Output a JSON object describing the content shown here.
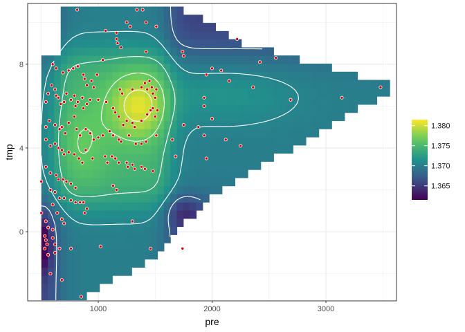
{
  "chart_data": {
    "type": "heatmap",
    "title": "",
    "xlabel": "pre",
    "ylabel": "tmp",
    "xlim": [
      380,
      3620
    ],
    "ylim": [
      -3.3,
      10.9
    ],
    "x_ticks": [
      {
        "value": 1000,
        "label": "1000"
      },
      {
        "value": 2000,
        "label": "2000"
      },
      {
        "value": 3000,
        "label": "3000"
      }
    ],
    "y_ticks": [
      {
        "value": 0,
        "label": "0"
      },
      {
        "value": 4,
        "label": "4"
      },
      {
        "value": 8,
        "label": "8"
      }
    ],
    "grid": true,
    "fill_scale": {
      "name": "viridis",
      "range": [
        1.3615,
        1.3815
      ],
      "colors": [
        "#440154",
        "#3b528b",
        "#21918c",
        "#5ec962",
        "#fde725"
      ]
    },
    "legend": {
      "position": "right",
      "entries": [
        {
          "value": 1.365,
          "label": "1.365"
        },
        {
          "value": 1.37,
          "label": "1.370"
        },
        {
          "value": 1.375,
          "label": "1.375"
        },
        {
          "value": 1.38,
          "label": "1.380"
        }
      ]
    },
    "colors": {
      "panel_border": "#333333",
      "grid_major": "#ebebeb",
      "contour": "#ffffff",
      "point_fill": "#dd0000",
      "point_stroke": "#ffffff"
    },
    "points": [
      [
        815,
        10.6
      ],
      [
        1065,
        9.6
      ],
      [
        1160,
        9.5
      ],
      [
        1160,
        9.2
      ],
      [
        1170,
        9.0
      ],
      [
        1200,
        8.8
      ],
      [
        1250,
        10.0
      ],
      [
        1340,
        10.6
      ],
      [
        1390,
        10.6
      ],
      [
        1420,
        10.0
      ],
      [
        1280,
        9.8
      ],
      [
        1510,
        9.8
      ],
      [
        1420,
        8.6
      ],
      [
        1740,
        8.6
      ],
      [
        1750,
        8.4
      ],
      [
        2220,
        9.2
      ],
      [
        1040,
        8.2
      ],
      [
        600,
        8.0
      ],
      [
        630,
        7.8
      ],
      [
        690,
        7.6
      ],
      [
        740,
        7.7
      ],
      [
        780,
        7.8
      ],
      [
        820,
        7.9
      ],
      [
        870,
        7.5
      ],
      [
        880,
        7.3
      ],
      [
        900,
        7.0
      ],
      [
        940,
        7.2
      ],
      [
        960,
        6.9
      ],
      [
        990,
        7.5
      ],
      [
        1190,
        6.8
      ],
      [
        1210,
        6.6
      ],
      [
        1300,
        6.8
      ],
      [
        1380,
        6.9
      ],
      [
        1410,
        7.1
      ],
      [
        1430,
        6.8
      ],
      [
        1450,
        7.2
      ],
      [
        1470,
        6.9
      ],
      [
        1510,
        6.8
      ],
      [
        1480,
        6.6
      ],
      [
        1500,
        6.4
      ],
      [
        2000,
        7.8
      ],
      [
        1950,
        7.5
      ],
      [
        2080,
        7.7
      ],
      [
        2150,
        7.2
      ],
      [
        2420,
        8.1
      ],
      [
        2560,
        8.3
      ],
      [
        1930,
        6.4
      ],
      [
        2360,
        6.9
      ],
      [
        2690,
        6.3
      ],
      [
        3140,
        6.4
      ],
      [
        3480,
        6.9
      ],
      [
        540,
        6.2
      ],
      [
        560,
        6.6
      ],
      [
        590,
        7.0
      ],
      [
        620,
        6.8
      ],
      [
        630,
        6.5
      ],
      [
        650,
        6.4
      ],
      [
        670,
        6.1
      ],
      [
        700,
        6.2
      ],
      [
        720,
        6.6
      ],
      [
        760,
        6.3
      ],
      [
        790,
        6.5
      ],
      [
        800,
        6.0
      ],
      [
        820,
        6.2
      ],
      [
        860,
        6.4
      ],
      [
        870,
        5.9
      ],
      [
        900,
        6.1
      ],
      [
        930,
        6.3
      ],
      [
        1000,
        6.3
      ],
      [
        1070,
        6.2
      ],
      [
        1130,
        5.9
      ],
      [
        1150,
        5.7
      ],
      [
        1180,
        5.5
      ],
      [
        1220,
        5.1
      ],
      [
        1250,
        5.3
      ],
      [
        1300,
        5.2
      ],
      [
        1320,
        5.0
      ],
      [
        1380,
        5.3
      ],
      [
        1430,
        5.6
      ],
      [
        1460,
        5.8
      ],
      [
        1480,
        5.9
      ],
      [
        1500,
        5.5
      ],
      [
        1520,
        5.8
      ],
      [
        1750,
        5.1
      ],
      [
        1880,
        5.0
      ],
      [
        1930,
        6.0
      ],
      [
        2000,
        5.4
      ],
      [
        540,
        5.0
      ],
      [
        570,
        5.3
      ],
      [
        620,
        5.1
      ],
      [
        660,
        4.9
      ],
      [
        680,
        5.0
      ],
      [
        710,
        4.7
      ],
      [
        740,
        5.2
      ],
      [
        790,
        5.5
      ],
      [
        810,
        4.9
      ],
      [
        840,
        4.6
      ],
      [
        890,
        4.9
      ],
      [
        930,
        4.7
      ],
      [
        960,
        4.4
      ],
      [
        1000,
        4.5
      ],
      [
        1040,
        4.6
      ],
      [
        1100,
        4.8
      ],
      [
        1130,
        4.6
      ],
      [
        1180,
        4.4
      ],
      [
        1200,
        4.3
      ],
      [
        1270,
        4.6
      ],
      [
        1330,
        4.2
      ],
      [
        1380,
        4.2
      ],
      [
        1420,
        4.3
      ],
      [
        1510,
        4.6
      ],
      [
        1650,
        4.4
      ],
      [
        1930,
        4.6
      ],
      [
        2120,
        4.4
      ],
      [
        2250,
        4.1
      ],
      [
        540,
        4.4
      ],
      [
        580,
        4.1
      ],
      [
        620,
        4.2
      ],
      [
        650,
        4.0
      ],
      [
        680,
        3.9
      ],
      [
        700,
        3.7
      ],
      [
        740,
        3.8
      ],
      [
        790,
        3.7
      ],
      [
        830,
        3.5
      ],
      [
        860,
        3.3
      ],
      [
        890,
        3.9
      ],
      [
        950,
        3.5
      ],
      [
        1060,
        3.6
      ],
      [
        1080,
        3.3
      ],
      [
        1120,
        3.6
      ],
      [
        1150,
        3.5
      ],
      [
        1180,
        3.3
      ],
      [
        1250,
        3.3
      ],
      [
        1260,
        3.1
      ],
      [
        1300,
        3.2
      ],
      [
        1320,
        3.0
      ],
      [
        1380,
        3.1
      ],
      [
        1410,
        3.0
      ],
      [
        1480,
        2.9
      ],
      [
        1680,
        3.6
      ],
      [
        1950,
        3.5
      ],
      [
        540,
        3.1
      ],
      [
        580,
        2.8
      ],
      [
        630,
        2.7
      ],
      [
        650,
        2.5
      ],
      [
        690,
        2.5
      ],
      [
        720,
        2.4
      ],
      [
        760,
        2.3
      ],
      [
        800,
        2.1
      ],
      [
        1130,
        2.2
      ],
      [
        1160,
        2.0
      ],
      [
        500,
        2.4
      ],
      [
        580,
        2.0
      ],
      [
        620,
        1.9
      ],
      [
        660,
        1.6
      ],
      [
        700,
        1.6
      ],
      [
        760,
        1.5
      ],
      [
        800,
        1.4
      ],
      [
        840,
        1.4
      ],
      [
        870,
        1.4
      ],
      [
        900,
        1.1
      ],
      [
        880,
        0.9
      ],
      [
        600,
        1.3
      ],
      [
        640,
        0.9
      ],
      [
        680,
        0.6
      ],
      [
        700,
        0.4
      ],
      [
        1300,
        0.5
      ],
      [
        500,
        0.9
      ],
      [
        540,
        0.5
      ],
      [
        560,
        0.2
      ],
      [
        600,
        0.1
      ],
      [
        530,
        -0.2
      ],
      [
        540,
        -0.4
      ],
      [
        550,
        -0.6
      ],
      [
        600,
        -0.3
      ],
      [
        620,
        -0.6
      ],
      [
        660,
        -0.8
      ],
      [
        760,
        -0.8
      ],
      [
        1020,
        -0.7
      ],
      [
        1460,
        -0.8
      ],
      [
        1740,
        -0.8
      ],
      [
        530,
        -0.8
      ],
      [
        560,
        -1.1
      ],
      [
        620,
        -1.0
      ],
      [
        580,
        -2.0
      ],
      [
        680,
        -2.3
      ],
      [
        850,
        -3.1
      ]
    ]
  }
}
